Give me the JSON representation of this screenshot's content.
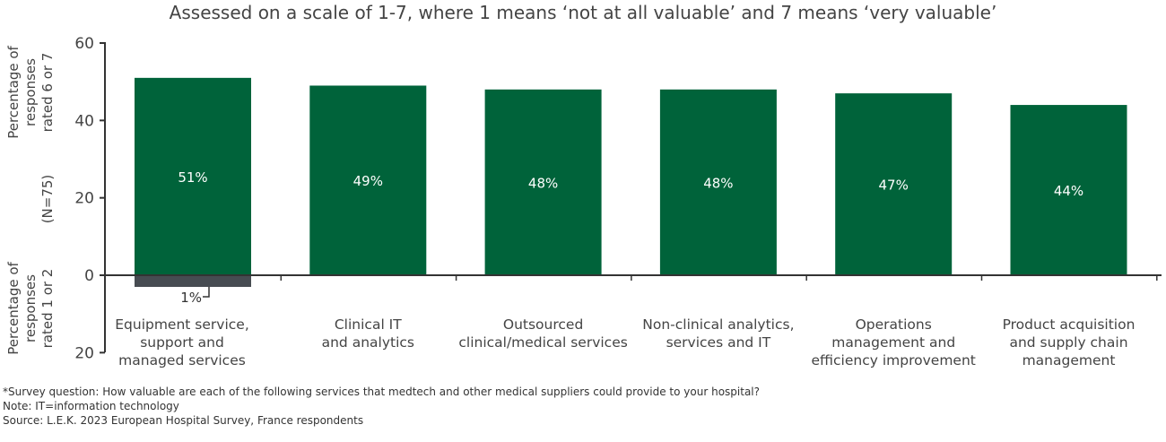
{
  "chart_data": {
    "type": "bar",
    "title": "Assessed on a scale of 1-7, where 1 means ‘not at all valuable’ and 7 means ‘very valuable’",
    "ylabel_upper": [
      "Percentage of",
      "responses",
      "rated 6 or 7"
    ],
    "ylabel_middle": "(N=75)",
    "ylabel_lower": [
      "Percentage of",
      "responses",
      "rated 1 or 2"
    ],
    "ylim": [
      -20,
      60
    ],
    "yticks": [
      {
        "value": 60,
        "label": "60"
      },
      {
        "value": 40,
        "label": "40"
      },
      {
        "value": 20,
        "label": "20"
      },
      {
        "value": 0,
        "label": "0"
      },
      {
        "value": -20,
        "label": "20"
      }
    ],
    "categories": [
      [
        "Equipment service,",
        "support and",
        "managed services"
      ],
      [
        "Clinical IT",
        "and analytics"
      ],
      [
        "Outsourced",
        "clinical/medical services"
      ],
      [
        "Non-clinical analytics,",
        "services and IT"
      ],
      [
        "Operations",
        "management and",
        "efficiency improvement"
      ],
      [
        "Product acquisition",
        "and supply chain",
        "management"
      ]
    ],
    "series": [
      {
        "values": [
          51,
          49,
          48,
          48,
          47,
          44
        ],
        "labels": [
          "51%",
          "49%",
          "48%",
          "48%",
          "47%",
          "44%"
        ],
        "color": "#00633a"
      },
      {
        "values": [
          -1,
          null,
          null,
          null,
          null,
          null
        ],
        "labels": [
          "1%",
          null,
          null,
          null,
          null,
          null
        ],
        "color": "#474c52"
      }
    ],
    "grid": false
  },
  "notes": [
    "*Survey question: How valuable are each of the following services that medtech and other medical suppliers could provide to your hospital?",
    "Note: IT=information technology",
    "Source: L.E.K. 2023 European Hospital Survey, France respondents"
  ]
}
